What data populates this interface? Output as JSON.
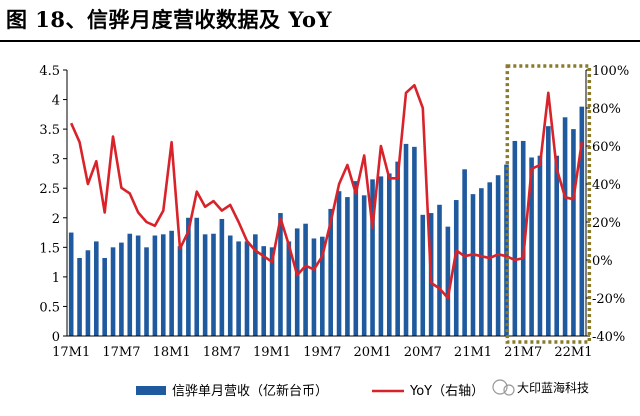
{
  "header": {
    "title": "图 18、信骅月度营收数据及 YoY"
  },
  "watermark": {
    "text": "大印蓝海科技"
  },
  "colors": {
    "bar": "#1f5a9e",
    "line": "#d9232a",
    "highlight_box": "#8a7a2a"
  },
  "chart_data": {
    "type": "bar",
    "categories": [
      "17M1",
      "17M2",
      "17M3",
      "17M4",
      "17M5",
      "17M6",
      "17M7",
      "17M8",
      "17M9",
      "17M10",
      "17M11",
      "17M12",
      "18M1",
      "18M2",
      "18M3",
      "18M4",
      "18M5",
      "18M6",
      "18M7",
      "18M8",
      "18M9",
      "18M10",
      "18M11",
      "18M12",
      "19M1",
      "19M2",
      "19M3",
      "19M4",
      "19M5",
      "19M6",
      "19M7",
      "19M8",
      "19M9",
      "19M10",
      "19M11",
      "19M12",
      "20M1",
      "20M2",
      "20M3",
      "20M4",
      "20M5",
      "20M6",
      "20M7",
      "20M8",
      "20M9",
      "20M10",
      "20M11",
      "20M12",
      "21M1",
      "21M2",
      "21M3",
      "21M4",
      "21M5",
      "21M6",
      "21M7",
      "21M8",
      "21M9",
      "21M10",
      "21M11",
      "21M12",
      "22M1",
      "22M2"
    ],
    "x_tick_labels": [
      "17M1",
      "17M7",
      "18M1",
      "18M7",
      "19M1",
      "19M7",
      "20M1",
      "20M7",
      "21M1",
      "21M7",
      "22M1"
    ],
    "series": [
      {
        "name": "信骅单月营收（亿新台币）",
        "axis": "left",
        "type": "bar",
        "values": [
          1.75,
          1.32,
          1.45,
          1.6,
          1.32,
          1.5,
          1.58,
          1.73,
          1.7,
          1.5,
          1.7,
          1.72,
          1.78,
          1.52,
          2.0,
          2.0,
          1.72,
          1.73,
          1.98,
          1.7,
          1.6,
          1.6,
          1.72,
          1.52,
          1.5,
          2.08,
          1.6,
          1.82,
          1.9,
          1.65,
          1.68,
          2.15,
          2.45,
          2.35,
          2.62,
          2.38,
          2.65,
          2.7,
          2.75,
          2.95,
          3.25,
          3.2,
          2.05,
          2.08,
          2.22,
          1.85,
          2.3,
          2.82,
          2.4,
          2.5,
          2.6,
          2.72,
          2.9,
          3.3,
          3.3,
          3.02,
          3.05,
          3.55,
          3.05,
          3.7,
          3.5,
          3.88
        ]
      },
      {
        "name": "YoY（右轴）",
        "axis": "right",
        "type": "line",
        "values": [
          72,
          62,
          40,
          52,
          25,
          65,
          38,
          35,
          25,
          20,
          18,
          26,
          62,
          6,
          15,
          36,
          28,
          31,
          26,
          29,
          20,
          10,
          5,
          2,
          -1,
          22,
          8,
          -8,
          -3,
          -5,
          2,
          20,
          40,
          50,
          35,
          55,
          17,
          60,
          43,
          43,
          88,
          92,
          80,
          -12,
          -15,
          -20,
          5,
          2,
          3,
          2,
          1,
          3,
          2,
          0,
          1,
          48,
          50,
          88,
          48,
          33,
          32,
          62
        ]
      }
    ],
    "y_left": {
      "ylim": [
        0,
        4.5
      ],
      "ticks": [
        "0",
        "0.5",
        "1",
        "1.5",
        "2",
        "2.5",
        "3",
        "3.5",
        "4",
        "4.5"
      ]
    },
    "y_right": {
      "ylim": [
        -40,
        100
      ],
      "ticks": [
        "-40%",
        "-20%",
        "0%",
        "20%",
        "40%",
        "60%",
        "80%",
        "100%"
      ]
    },
    "highlight": {
      "from": "21M6",
      "to": "22M2"
    },
    "legend_position": "bottom",
    "grid": false
  }
}
